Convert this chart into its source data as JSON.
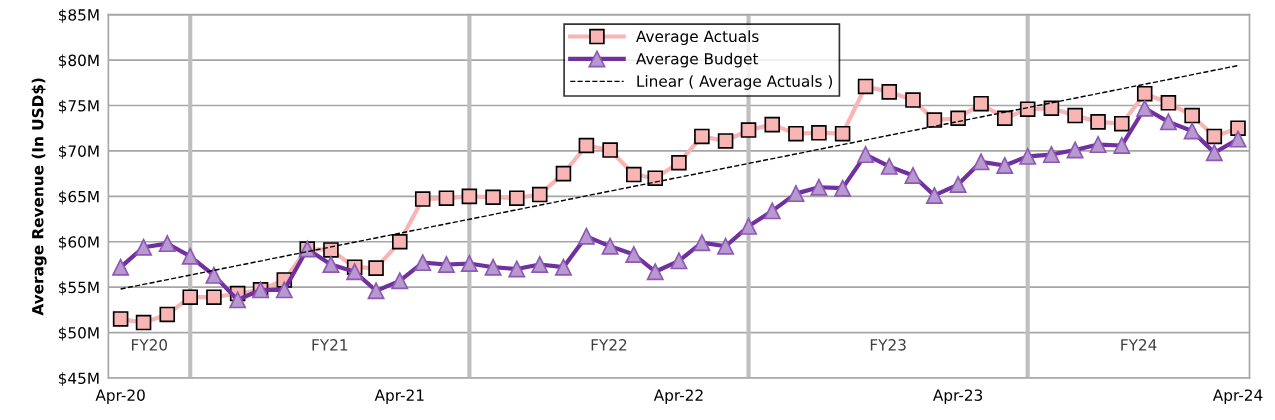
{
  "chart_data": {
    "type": "line",
    "ylabel": "Average Revenue (In USD$)",
    "x": [
      "2020-04",
      "2020-05",
      "2020-06",
      "2020-07",
      "2020-08",
      "2020-09",
      "2020-10",
      "2020-11",
      "2020-12",
      "2021-01",
      "2021-02",
      "2021-03",
      "2021-04",
      "2021-05",
      "2021-06",
      "2021-07",
      "2021-08",
      "2021-09",
      "2021-10",
      "2021-11",
      "2021-12",
      "2022-01",
      "2022-02",
      "2022-03",
      "2022-04",
      "2022-05",
      "2022-06",
      "2022-07",
      "2022-08",
      "2022-09",
      "2022-10",
      "2022-11",
      "2022-12",
      "2023-01",
      "2023-02",
      "2023-03",
      "2023-04",
      "2023-05",
      "2023-06",
      "2023-07",
      "2023-08",
      "2023-09",
      "2023-10",
      "2023-11",
      "2023-12",
      "2024-01",
      "2024-02",
      "2024-03",
      "2024-04"
    ],
    "series": [
      {
        "name": "Average Actuals",
        "color": "#f9b4b4",
        "marker": "square",
        "values": [
          51.5,
          51.1,
          52.0,
          53.9,
          53.9,
          54.3,
          54.7,
          55.8,
          59.2,
          59.1,
          57.2,
          57.1,
          60.0,
          64.7,
          64.8,
          65.0,
          64.9,
          64.8,
          65.2,
          67.5,
          70.6,
          70.1,
          67.4,
          67.0,
          68.7,
          71.6,
          71.1,
          72.3,
          72.9,
          71.9,
          72.0,
          71.9,
          77.1,
          76.5,
          75.6,
          73.4,
          73.6,
          75.2,
          73.6,
          74.6,
          74.7,
          73.9,
          73.2,
          73.0,
          76.3,
          75.3,
          73.9,
          71.6,
          72.5
        ]
      },
      {
        "name": "Average Budget",
        "color": "#7030a0",
        "marker": "triangle",
        "values": [
          57.2,
          59.4,
          59.8,
          58.4,
          56.3,
          53.6,
          54.7,
          54.7,
          59.2,
          57.5,
          56.7,
          54.6,
          55.7,
          57.7,
          57.5,
          57.6,
          57.2,
          57.0,
          57.5,
          57.2,
          60.6,
          59.5,
          58.6,
          56.7,
          57.9,
          59.9,
          59.5,
          61.7,
          63.4,
          65.3,
          66.0,
          65.9,
          69.6,
          68.3,
          67.3,
          65.1,
          66.3,
          68.8,
          68.4,
          69.4,
          69.6,
          70.1,
          70.7,
          70.6,
          74.7,
          73.2,
          72.2,
          69.8,
          71.3
        ]
      },
      {
        "name": "Linear ( Average Actuals )",
        "type": "line",
        "color": "#000000",
        "marker": "none",
        "line_style": "dashed",
        "x": [
          "2020-04",
          "2024-04"
        ],
        "values": [
          54.8,
          79.4
        ]
      }
    ],
    "xlim": [
      "2020-03-16",
      "2024-04-16"
    ],
    "xticks": [
      {
        "value": "2020-04",
        "label": "Apr-20"
      },
      {
        "value": "2021-04",
        "label": "Apr-21"
      },
      {
        "value": "2022-04",
        "label": "Apr-22"
      },
      {
        "value": "2023-04",
        "label": "Apr-23"
      },
      {
        "value": "2024-04",
        "label": "Apr-24"
      }
    ],
    "ylim": [
      45,
      85
    ],
    "yticks": [
      {
        "value": 45,
        "label": "$45M"
      },
      {
        "value": 50,
        "label": "$50M"
      },
      {
        "value": 55,
        "label": "$55M"
      },
      {
        "value": 60,
        "label": "$60M"
      },
      {
        "value": 65,
        "label": "$65M"
      },
      {
        "value": 70,
        "label": "$70M"
      },
      {
        "value": 75,
        "label": "$75M"
      },
      {
        "value": 80,
        "label": "$80M"
      },
      {
        "value": 85,
        "label": "$85M"
      }
    ],
    "ref_lines": [
      {
        "axis": "x",
        "value": "2020-07",
        "color": "#bfbfbf"
      },
      {
        "axis": "x",
        "value": "2021-07",
        "color": "#bfbfbf"
      },
      {
        "axis": "x",
        "value": "2022-07",
        "color": "#bfbfbf"
      },
      {
        "axis": "x",
        "value": "2023-07",
        "color": "#bfbfbf"
      }
    ],
    "annotations": [
      "FY20",
      "FY21",
      "FY22",
      "FY23",
      "FY24"
    ],
    "grid": "y",
    "legend": "top"
  }
}
